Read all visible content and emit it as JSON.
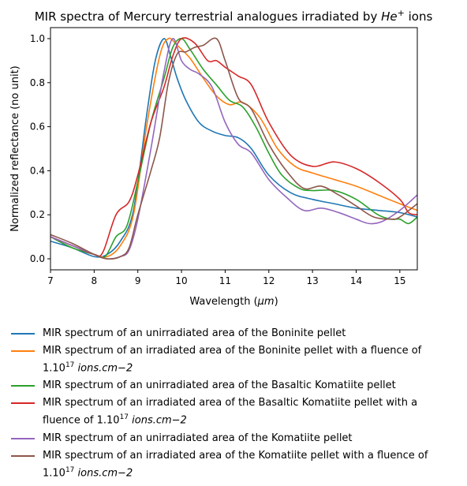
{
  "chart_data": {
    "type": "line",
    "title_main": "MIR spectra of Mercury terrestrial analogues irradiated by",
    "title_ion": "He",
    "title_sup": "+",
    "title_tail": " ions",
    "xlabel_main": "Wavelength (",
    "xlabel_unit": "μm",
    "xlabel_tail": ")",
    "ylabel": "Normalized reflectance (no unit)",
    "xlim": [
      7,
      15.4
    ],
    "ylim": [
      -0.05,
      1.05
    ],
    "xticks": [
      7,
      8,
      9,
      10,
      11,
      12,
      13,
      14,
      15
    ],
    "yticks": [
      0.0,
      0.2,
      0.4,
      0.6,
      0.8,
      1.0
    ],
    "grid": false,
    "legend_position": "below",
    "series": [
      {
        "name": "MIR spectrum of an unirradiated area of the Boninite pellet",
        "color": "#1f77b4",
        "x": [
          7.0,
          7.5,
          8.0,
          8.3,
          8.6,
          8.9,
          9.2,
          9.4,
          9.6,
          9.75,
          9.9,
          10.1,
          10.4,
          10.7,
          11.0,
          11.3,
          11.6,
          12.0,
          12.5,
          13.0,
          13.5,
          14.0,
          14.5,
          15.0,
          15.4
        ],
        "y": [
          0.08,
          0.05,
          0.01,
          0.02,
          0.08,
          0.22,
          0.65,
          0.9,
          1.0,
          0.92,
          0.82,
          0.72,
          0.62,
          0.58,
          0.56,
          0.55,
          0.5,
          0.38,
          0.3,
          0.27,
          0.25,
          0.23,
          0.22,
          0.21,
          0.19
        ]
      },
      {
        "name": "MIR spectrum of an irradiated area of the Boninite pellet with a fluence of",
        "color": "#ff7f0e",
        "x": [
          7.0,
          7.5,
          8.0,
          8.3,
          8.6,
          8.9,
          9.2,
          9.5,
          9.7,
          9.9,
          10.2,
          10.5,
          10.8,
          11.1,
          11.4,
          11.8,
          12.2,
          12.6,
          13.0,
          13.5,
          14.0,
          14.5,
          15.0,
          15.4
        ],
        "y": [
          0.1,
          0.06,
          0.02,
          0.01,
          0.06,
          0.2,
          0.6,
          0.92,
          1.0,
          0.97,
          0.91,
          0.82,
          0.74,
          0.7,
          0.71,
          0.64,
          0.5,
          0.42,
          0.39,
          0.36,
          0.33,
          0.29,
          0.25,
          0.22
        ]
      },
      {
        "name": "MIR spectrum of an unirradiated area of the Basaltic Komatiite pellet",
        "color": "#2ca02c",
        "x": [
          7.0,
          7.5,
          8.0,
          8.25,
          8.5,
          8.75,
          9.0,
          9.3,
          9.6,
          9.8,
          10.0,
          10.2,
          10.5,
          10.8,
          11.1,
          11.4,
          11.7,
          12.0,
          12.3,
          12.7,
          13.0,
          13.5,
          14.0,
          14.5,
          14.8,
          15.0,
          15.2,
          15.4
        ],
        "y": [
          0.1,
          0.05,
          0.02,
          0.01,
          0.1,
          0.15,
          0.35,
          0.62,
          0.82,
          0.96,
          1.0,
          0.95,
          0.86,
          0.79,
          0.72,
          0.69,
          0.6,
          0.48,
          0.38,
          0.32,
          0.31,
          0.31,
          0.27,
          0.2,
          0.18,
          0.18,
          0.16,
          0.19
        ]
      },
      {
        "name": "MIR spectrum of an irradiated area of the Basaltic Komatiite pellet with a",
        "color": "#d62728",
        "x": [
          7.0,
          7.5,
          8.0,
          8.2,
          8.5,
          8.8,
          9.0,
          9.3,
          9.6,
          9.8,
          10.0,
          10.3,
          10.6,
          10.8,
          11.0,
          11.3,
          11.6,
          12.0,
          12.5,
          13.0,
          13.5,
          14.0,
          14.5,
          15.0,
          15.2,
          15.4
        ],
        "y": [
          0.1,
          0.06,
          0.02,
          0.03,
          0.2,
          0.26,
          0.38,
          0.62,
          0.78,
          0.92,
          1.0,
          0.98,
          0.9,
          0.9,
          0.87,
          0.83,
          0.79,
          0.62,
          0.47,
          0.42,
          0.44,
          0.41,
          0.35,
          0.27,
          0.21,
          0.2
        ]
      },
      {
        "name": "MIR spectrum of an unirradiated area of the Komatiite pellet",
        "color": "#9467bd",
        "x": [
          7.0,
          7.5,
          8.0,
          8.3,
          8.6,
          8.8,
          9.0,
          9.3,
          9.6,
          9.8,
          10.0,
          10.2,
          10.4,
          10.7,
          11.0,
          11.3,
          11.6,
          12.0,
          12.4,
          12.8,
          13.2,
          13.6,
          14.0,
          14.3,
          14.6,
          15.0,
          15.4
        ],
        "y": [
          0.1,
          0.06,
          0.02,
          0.0,
          0.01,
          0.04,
          0.18,
          0.5,
          0.85,
          1.0,
          0.9,
          0.86,
          0.84,
          0.78,
          0.62,
          0.52,
          0.48,
          0.36,
          0.28,
          0.22,
          0.23,
          0.21,
          0.18,
          0.16,
          0.17,
          0.22,
          0.29
        ]
      },
      {
        "name": "MIR spectrum of an irradiated area of the Komatiite pellet with a fluence of",
        "color": "#8c564b",
        "x": [
          7.0,
          7.5,
          8.0,
          8.3,
          8.6,
          8.8,
          9.0,
          9.3,
          9.5,
          9.7,
          9.9,
          10.1,
          10.3,
          10.5,
          10.8,
          11.0,
          11.3,
          11.6,
          12.0,
          12.4,
          12.8,
          13.2,
          13.6,
          14.0,
          14.4,
          14.8,
          15.0,
          15.4
        ],
        "y": [
          0.11,
          0.07,
          0.02,
          0.0,
          0.01,
          0.05,
          0.2,
          0.4,
          0.55,
          0.8,
          0.93,
          0.94,
          0.96,
          0.97,
          1.0,
          0.9,
          0.73,
          0.68,
          0.52,
          0.4,
          0.32,
          0.33,
          0.29,
          0.24,
          0.19,
          0.18,
          0.19,
          0.25
        ]
      }
    ],
    "legend": [
      {
        "lines": [
          "MIR spectrum of an unirradiated area of the Boninite pellet"
        ],
        "fluence": false
      },
      {
        "lines": [
          "MIR spectrum of an irradiated area of the Boninite pellet with a fluence of"
        ],
        "fluence": true,
        "fluence_prefix": ""
      },
      {
        "lines": [
          "MIR spectrum of an unirradiated area of the Basaltic Komatiite pellet"
        ],
        "fluence": false
      },
      {
        "lines": [
          "MIR spectrum of an irradiated area of the Basaltic Komatiite pellet with a"
        ],
        "fluence": true,
        "fluence_prefix": "fluence of "
      },
      {
        "lines": [
          "MIR spectrum of an unirradiated area of the Komatiite pellet"
        ],
        "fluence": false
      },
      {
        "lines": [
          "MIR spectrum of an irradiated area of the Komatiite pellet with a fluence of"
        ],
        "fluence": true,
        "fluence_prefix": ""
      }
    ],
    "fluence_base": "1.10",
    "fluence_exp": "17",
    "fluence_unit": "ions.cm−2"
  }
}
